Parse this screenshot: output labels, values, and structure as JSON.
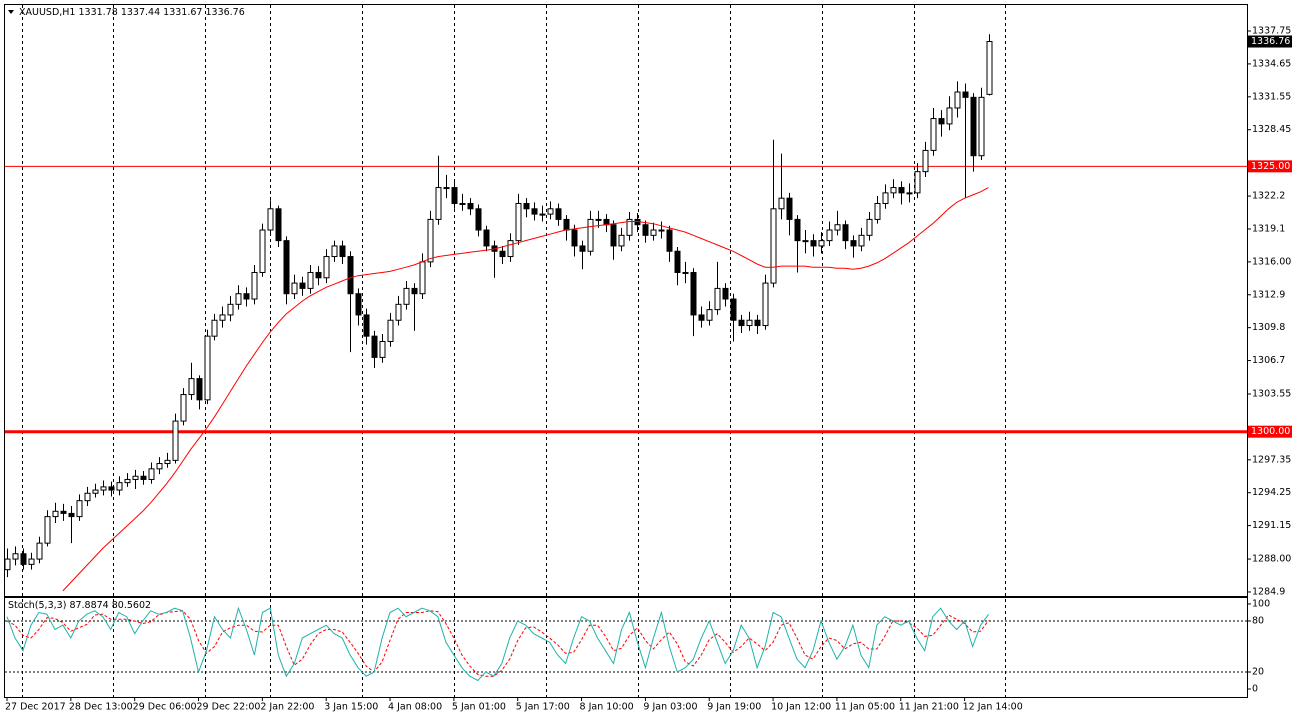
{
  "chart_data": {
    "type": "candlestick",
    "symbol": "XAUUSD,H1",
    "header_ohlc": [
      1331.78,
      1337.44,
      1331.67,
      1336.76
    ],
    "categories": [
      "27 Dec 2017",
      null,
      null,
      null,
      null,
      null,
      null,
      null,
      "28 Dec 13:00",
      null,
      null,
      null,
      null,
      null,
      null,
      null,
      "29 Dec 06:00",
      null,
      null,
      null,
      null,
      null,
      null,
      null,
      "29 Dec 22:00",
      null,
      null,
      null,
      null,
      null,
      null,
      null,
      "2 Jan 22:00",
      null,
      null,
      null,
      null,
      null,
      null,
      null,
      "3 Jan 15:00",
      null,
      null,
      null,
      null,
      null,
      null,
      null,
      "4 Jan 08:00",
      null,
      null,
      null,
      null,
      null,
      null,
      null,
      "5 Jan 01:00",
      null,
      null,
      null,
      null,
      null,
      null,
      null,
      "5 Jan 17:00",
      null,
      null,
      null,
      null,
      null,
      null,
      null,
      "8 Jan 10:00",
      null,
      null,
      null,
      null,
      null,
      null,
      null,
      "9 Jan 03:00",
      null,
      null,
      null,
      null,
      null,
      null,
      null,
      "9 Jan 19:00",
      null,
      null,
      null,
      null,
      null,
      null,
      null,
      "10 Jan 12:00",
      null,
      null,
      null,
      null,
      null,
      null,
      null,
      "11 Jan 05:00",
      null,
      null,
      null,
      null,
      null,
      null,
      null,
      "11 Jan 21:00",
      null,
      null,
      null,
      null,
      null,
      null,
      null,
      "12 Jan 14:00",
      null,
      null,
      null
    ],
    "open": [
      1287.0,
      1288.0,
      1288.5,
      1287.5,
      1288.0,
      1289.5,
      1292.0,
      1292.5,
      1292.3,
      1292.0,
      1293.5,
      1294.2,
      1294.5,
      1294.8,
      1294.5,
      1295.2,
      1295.5,
      1295.8,
      1295.5,
      1296.5,
      1297.0,
      1297.3,
      1301.0,
      1303.5,
      1305.0,
      1303.0,
      1309.0,
      1310.5,
      1311.0,
      1312.0,
      1313.0,
      1312.5,
      1315.0,
      1319.0,
      1321.0,
      1318.0,
      1313.0,
      1314.0,
      1313.5,
      1315.0,
      1314.5,
      1316.5,
      1317.5,
      1316.5,
      1313.0,
      1311.0,
      1309.0,
      1307.0,
      1308.5,
      1310.5,
      1312.0,
      1313.5,
      1313.0,
      1316.0,
      1320.0,
      1323.0,
      1323.0,
      1321.5,
      1321.5,
      1321.0,
      1319.0,
      1317.5,
      1317.0,
      1316.5,
      1318.0,
      1321.5,
      1321.0,
      1320.5,
      1320.5,
      1321.0,
      1320.0,
      1319.0,
      1317.5,
      1317.0,
      1320.0,
      1320.0,
      1319.5,
      1317.5,
      1318.5,
      1320.0,
      1319.5,
      1318.5,
      1319.0,
      1319.0,
      1317.0,
      1315.0,
      1315.0,
      1311.0,
      1310.5,
      1311.5,
      1313.5,
      1312.5,
      1310.5,
      1310.0,
      1310.5,
      1310.0,
      1314.0,
      1321.0,
      1322.0,
      1320.0,
      1318.0,
      1318.0,
      1317.5,
      1318.0,
      1319.0,
      1319.5,
      1318.0,
      1317.5,
      1318.5,
      1320.0,
      1321.5,
      1322.5,
      1323.0,
      1322.5,
      1322.5,
      1324.5,
      1326.5,
      1329.5,
      1329.0,
      1330.5,
      1332.0,
      1331.5,
      1326.0,
      1331.78
    ],
    "high": [
      1289.0,
      1289.2,
      1289.0,
      1288.6,
      1290.1,
      1292.6,
      1293.3,
      1293.2,
      1293.0,
      1294.1,
      1294.8,
      1295.1,
      1295.4,
      1295.3,
      1295.8,
      1296.1,
      1296.4,
      1296.3,
      1297.1,
      1297.6,
      1298.0,
      1301.7,
      1304.1,
      1306.5,
      1305.3,
      1309.6,
      1311.1,
      1311.8,
      1312.8,
      1313.8,
      1313.6,
      1315.7,
      1319.6,
      1321.8,
      1321.3,
      1318.4,
      1314.8,
      1314.6,
      1315.7,
      1315.6,
      1317.2,
      1318.0,
      1318.0,
      1317.0,
      1313.5,
      1311.6,
      1309.5,
      1309.2,
      1311.2,
      1312.8,
      1314.2,
      1314.0,
      1316.8,
      1320.8,
      1326.0,
      1324.2,
      1323.6,
      1322.4,
      1322.0,
      1321.4,
      1319.4,
      1318.0,
      1317.5,
      1318.7,
      1322.4,
      1322.0,
      1321.6,
      1321.3,
      1321.7,
      1321.5,
      1320.4,
      1319.5,
      1318.0,
      1320.8,
      1320.8,
      1320.5,
      1319.9,
      1319.2,
      1320.7,
      1320.6,
      1319.9,
      1319.7,
      1319.8,
      1319.4,
      1317.4,
      1316.0,
      1315.4,
      1311.8,
      1312.3,
      1316.0,
      1314.0,
      1313.0,
      1311.0,
      1311.3,
      1311.0,
      1314.8,
      1327.5,
      1326.2,
      1322.5,
      1320.4,
      1319.0,
      1318.6,
      1318.8,
      1319.8,
      1320.8,
      1319.9,
      1318.5,
      1319.2,
      1320.7,
      1322.2,
      1323.3,
      1323.8,
      1323.6,
      1323.4,
      1325.3,
      1327.3,
      1330.5,
      1330.3,
      1331.6,
      1333.0,
      1332.8,
      1331.9,
      1332.4,
      1337.44
    ],
    "low": [
      1286.3,
      1287.4,
      1287.0,
      1287.0,
      1287.6,
      1289.2,
      1291.4,
      1291.6,
      1289.5,
      1291.6,
      1293.0,
      1293.8,
      1294.0,
      1293.9,
      1294.0,
      1294.8,
      1294.6,
      1295.0,
      1295.1,
      1296.0,
      1296.6,
      1297.0,
      1300.6,
      1303.0,
      1302.1,
      1302.6,
      1308.6,
      1309.8,
      1310.4,
      1311.5,
      1311.8,
      1312.0,
      1314.6,
      1318.5,
      1317.4,
      1312.0,
      1312.5,
      1312.8,
      1313.0,
      1313.8,
      1314.0,
      1316.0,
      1315.8,
      1307.5,
      1310.0,
      1308.2,
      1306.0,
      1306.5,
      1308.0,
      1310.0,
      1311.5,
      1309.5,
      1312.5,
      1315.5,
      1319.5,
      1322.0,
      1321.0,
      1320.8,
      1320.4,
      1318.4,
      1317.0,
      1314.5,
      1315.8,
      1316.0,
      1317.6,
      1320.2,
      1319.9,
      1319.8,
      1320.0,
      1319.4,
      1318.0,
      1316.5,
      1315.3,
      1316.6,
      1319.2,
      1318.8,
      1316.2,
      1317.0,
      1318.0,
      1318.8,
      1317.8,
      1318.0,
      1318.2,
      1316.0,
      1313.8,
      1314.0,
      1309.0,
      1309.8,
      1310.0,
      1311.0,
      1311.8,
      1308.5,
      1309.3,
      1309.5,
      1309.2,
      1309.6,
      1313.6,
      1320.0,
      1318.5,
      1315.0,
      1316.8,
      1316.5,
      1316.8,
      1317.5,
      1318.5,
      1317.2,
      1316.4,
      1317.0,
      1318.0,
      1319.6,
      1321.0,
      1322.0,
      1321.4,
      1321.6,
      1322.0,
      1324.0,
      1326.0,
      1327.8,
      1328.4,
      1329.6,
      1322.0,
      1324.5,
      1325.6,
      1331.67
    ],
    "close": [
      1288.0,
      1288.5,
      1287.5,
      1288.0,
      1289.5,
      1292.0,
      1292.5,
      1292.3,
      1292.0,
      1293.5,
      1294.2,
      1294.5,
      1294.8,
      1294.5,
      1295.2,
      1295.5,
      1295.8,
      1295.5,
      1296.5,
      1297.0,
      1297.3,
      1301.0,
      1303.5,
      1305.0,
      1303.0,
      1309.0,
      1310.5,
      1311.0,
      1312.0,
      1313.0,
      1312.5,
      1315.0,
      1319.0,
      1321.0,
      1318.0,
      1313.0,
      1314.0,
      1313.5,
      1315.0,
      1314.5,
      1316.5,
      1317.5,
      1316.5,
      1313.0,
      1311.0,
      1309.0,
      1307.0,
      1308.5,
      1310.5,
      1312.0,
      1313.5,
      1313.0,
      1316.0,
      1320.0,
      1323.0,
      1323.0,
      1321.5,
      1321.5,
      1321.0,
      1319.0,
      1317.5,
      1317.0,
      1316.5,
      1318.0,
      1321.5,
      1321.0,
      1320.5,
      1320.5,
      1321.0,
      1320.0,
      1319.0,
      1317.5,
      1317.0,
      1320.0,
      1320.0,
      1319.5,
      1317.5,
      1318.5,
      1320.0,
      1319.5,
      1318.5,
      1319.0,
      1319.0,
      1317.0,
      1315.0,
      1315.0,
      1311.0,
      1310.5,
      1311.5,
      1313.5,
      1312.5,
      1310.5,
      1310.0,
      1310.5,
      1310.0,
      1314.0,
      1321.0,
      1322.0,
      1320.0,
      1318.0,
      1318.0,
      1317.5,
      1318.0,
      1319.0,
      1319.5,
      1318.0,
      1317.5,
      1318.5,
      1320.0,
      1321.5,
      1322.5,
      1323.0,
      1322.5,
      1322.5,
      1324.5,
      1326.5,
      1329.5,
      1329.0,
      1330.5,
      1332.0,
      1331.5,
      1326.0,
      1331.5,
      1336.76
    ],
    "candle_colors": {
      "up": "#ffffff",
      "down": "#000000",
      "outline": "#000000"
    },
    "ylim": [
      1284.52,
      1340.2
    ],
    "yticks": [
      1337.75,
      1334.65,
      1331.55,
      1328.45,
      1322.2,
      1319.1,
      {
        "value": 1316,
        "label": "1316.00"
      },
      1312.9,
      1309.8,
      1306.7,
      1303.55,
      1297.35,
      1294.25,
      1291.15,
      {
        "value": 1288,
        "label": "1288.00"
      },
      1284.9
    ],
    "current_price": 1336.76,
    "levels": [
      {
        "value": 1325,
        "label": "1325.00",
        "color": "#ff0000",
        "style": "thin"
      },
      {
        "value": 1300,
        "label": "1300.00",
        "color": "#ff0000",
        "style": "thick"
      }
    ],
    "moving_average": {
      "color": "#ff0000",
      "values": [
        null,
        null,
        null,
        null,
        null,
        null,
        null,
        1285.0,
        1285.8,
        1286.6,
        1287.4,
        1288.2,
        1289.0,
        1289.7,
        1290.4,
        1291.1,
        1291.8,
        1292.5,
        1293.3,
        1294.2,
        1295.1,
        1296.1,
        1297.2,
        1298.3,
        1299.3,
        1300.3,
        1301.4,
        1302.6,
        1303.8,
        1305.0,
        1306.2,
        1307.3,
        1308.4,
        1309.4,
        1310.3,
        1311.1,
        1311.7,
        1312.3,
        1312.8,
        1313.2,
        1313.6,
        1313.9,
        1314.2,
        1314.5,
        1314.7,
        1314.8,
        1314.9,
        1315.0,
        1315.1,
        1315.3,
        1315.5,
        1315.7,
        1316.0,
        1316.3,
        1316.5,
        1316.6,
        1316.7,
        1316.8,
        1316.9,
        1317.0,
        1317.1,
        1317.2,
        1317.4,
        1317.6,
        1317.8,
        1318.0,
        1318.2,
        1318.4,
        1318.6,
        1318.8,
        1319.0,
        1319.1,
        1319.2,
        1319.3,
        1319.4,
        1319.5,
        1319.6,
        1319.7,
        1319.8,
        1319.8,
        1319.7,
        1319.6,
        1319.4,
        1319.2,
        1319.0,
        1318.8,
        1318.5,
        1318.2,
        1317.9,
        1317.6,
        1317.3,
        1317.0,
        1316.6,
        1316.2,
        1315.8,
        1315.5,
        1315.5,
        1315.6,
        1315.6,
        1315.6,
        1315.6,
        1315.5,
        1315.5,
        1315.5,
        1315.4,
        1315.4,
        1315.3,
        1315.4,
        1315.6,
        1315.9,
        1316.3,
        1316.8,
        1317.3,
        1317.8,
        1318.4,
        1319.0,
        1319.6,
        1320.3,
        1321.0,
        1321.6,
        1322.0,
        1322.3,
        1322.6,
        1323.0
      ]
    },
    "stochastic": {
      "title": "Stoch(5,3,3)",
      "main_value": 87.8874,
      "signal_value": 80.5602,
      "ylim": [
        -9.4,
        107
      ],
      "yticks": [
        100,
        80,
        20,
        0
      ],
      "levels": [
        80,
        20
      ],
      "main": {
        "color": "#20b2aa",
        "values": [
          85,
          60,
          45,
          75,
          90,
          88,
          70,
          75,
          60,
          80,
          88,
          92,
          85,
          70,
          90,
          85,
          65,
          80,
          92,
          88,
          90,
          95,
          92,
          60,
          20,
          45,
          85,
          70,
          60,
          95,
          70,
          40,
          90,
          95,
          40,
          15,
          30,
          60,
          65,
          70,
          75,
          65,
          60,
          40,
          25,
          15,
          20,
          60,
          90,
          95,
          85,
          90,
          95,
          92,
          85,
          55,
          40,
          25,
          15,
          10,
          20,
          15,
          30,
          60,
          80,
          75,
          65,
          60,
          55,
          40,
          30,
          60,
          85,
          80,
          60,
          45,
          30,
          70,
          90,
          55,
          25,
          60,
          90,
          50,
          20,
          25,
          35,
          60,
          80,
          55,
          30,
          45,
          75,
          60,
          25,
          50,
          90,
          85,
          60,
          35,
          25,
          45,
          80,
          55,
          35,
          50,
          75,
          40,
          25,
          75,
          85,
          80,
          75,
          80,
          60,
          45,
          85,
          95,
          80,
          70,
          80,
          50,
          75,
          87.8874
        ]
      },
      "signal": {
        "color": "#ff0000",
        "values": [
          80,
          75,
          63,
          60,
          70,
          84,
          83,
          78,
          68,
          72,
          76,
          87,
          88,
          82,
          82,
          82,
          80,
          77,
          79,
          87,
          90,
          91,
          92,
          82,
          57,
          42,
          50,
          67,
          72,
          75,
          75,
          68,
          67,
          75,
          75,
          50,
          28,
          35,
          52,
          65,
          70,
          70,
          67,
          55,
          42,
          27,
          20,
          32,
          57,
          82,
          90,
          90,
          90,
          92,
          91,
          77,
          60,
          40,
          27,
          17,
          15,
          15,
          22,
          35,
          57,
          72,
          73,
          67,
          60,
          52,
          42,
          43,
          58,
          75,
          75,
          62,
          45,
          48,
          63,
          72,
          57,
          47,
          58,
          67,
          53,
          32,
          27,
          40,
          58,
          65,
          55,
          43,
          50,
          60,
          53,
          45,
          55,
          75,
          78,
          60,
          40,
          35,
          50,
          60,
          57,
          47,
          53,
          55,
          47,
          47,
          62,
          80,
          80,
          78,
          72,
          62,
          63,
          75,
          87,
          82,
          77,
          67,
          68,
          80.5602
        ]
      }
    }
  }
}
